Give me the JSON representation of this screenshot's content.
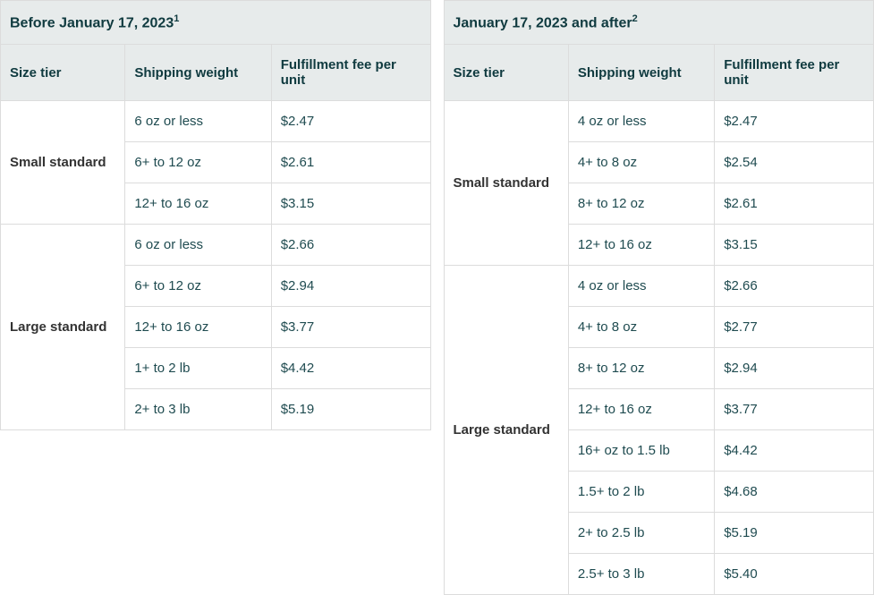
{
  "colors": {
    "header_bg": "#e7ebeb",
    "header_text": "#0f3a3f",
    "cell_bg": "#ffffff",
    "border": "#dcdcdc",
    "value_text": "#1f4b50",
    "tier_text": "#333333"
  },
  "columns": {
    "c1_width_pct": 29,
    "c2_width_pct": 34,
    "c3_width_pct": 37
  },
  "labels": {
    "size_tier": "Size tier",
    "shipping_weight": "Shipping weight",
    "fee_per_unit": "Fulfillment fee per unit"
  },
  "left": {
    "title": "Before January 17, 2023",
    "footnote": "1",
    "tiers": [
      {
        "name": "Small standard",
        "rows": [
          {
            "weight": "6 oz or less",
            "fee": "$2.47"
          },
          {
            "weight": "6+ to 12 oz",
            "fee": "$2.61"
          },
          {
            "weight": "12+ to 16 oz",
            "fee": "$3.15"
          }
        ]
      },
      {
        "name": "Large standard",
        "rows": [
          {
            "weight": "6 oz or less",
            "fee": "$2.66"
          },
          {
            "weight": "6+ to 12 oz",
            "fee": "$2.94"
          },
          {
            "weight": "12+ to 16 oz",
            "fee": "$3.77"
          },
          {
            "weight": "1+ to 2 lb",
            "fee": "$4.42"
          },
          {
            "weight": "2+ to 3 lb",
            "fee": "$5.19"
          }
        ]
      }
    ]
  },
  "right": {
    "title": "January 17, 2023 and after",
    "footnote": "2",
    "tiers": [
      {
        "name": "Small standard",
        "rows": [
          {
            "weight": "4 oz or less",
            "fee": "$2.47"
          },
          {
            "weight": "4+ to 8 oz",
            "fee": "$2.54"
          },
          {
            "weight": "8+ to 12 oz",
            "fee": "$2.61"
          },
          {
            "weight": "12+ to 16 oz",
            "fee": "$3.15"
          }
        ]
      },
      {
        "name": "Large standard",
        "rows": [
          {
            "weight": "4 oz or less",
            "fee": "$2.66"
          },
          {
            "weight": "4+ to 8 oz",
            "fee": "$2.77"
          },
          {
            "weight": "8+ to 12 oz",
            "fee": "$2.94"
          },
          {
            "weight": "12+ to 16 oz",
            "fee": "$3.77"
          },
          {
            "weight": "16+ oz to 1.5 lb",
            "fee": "$4.42"
          },
          {
            "weight": "1.5+ to 2 lb",
            "fee": "$4.68"
          },
          {
            "weight": "2+ to 2.5 lb",
            "fee": "$5.19"
          },
          {
            "weight": "2.5+ to 3 lb",
            "fee": "$5.40"
          }
        ]
      }
    ]
  }
}
